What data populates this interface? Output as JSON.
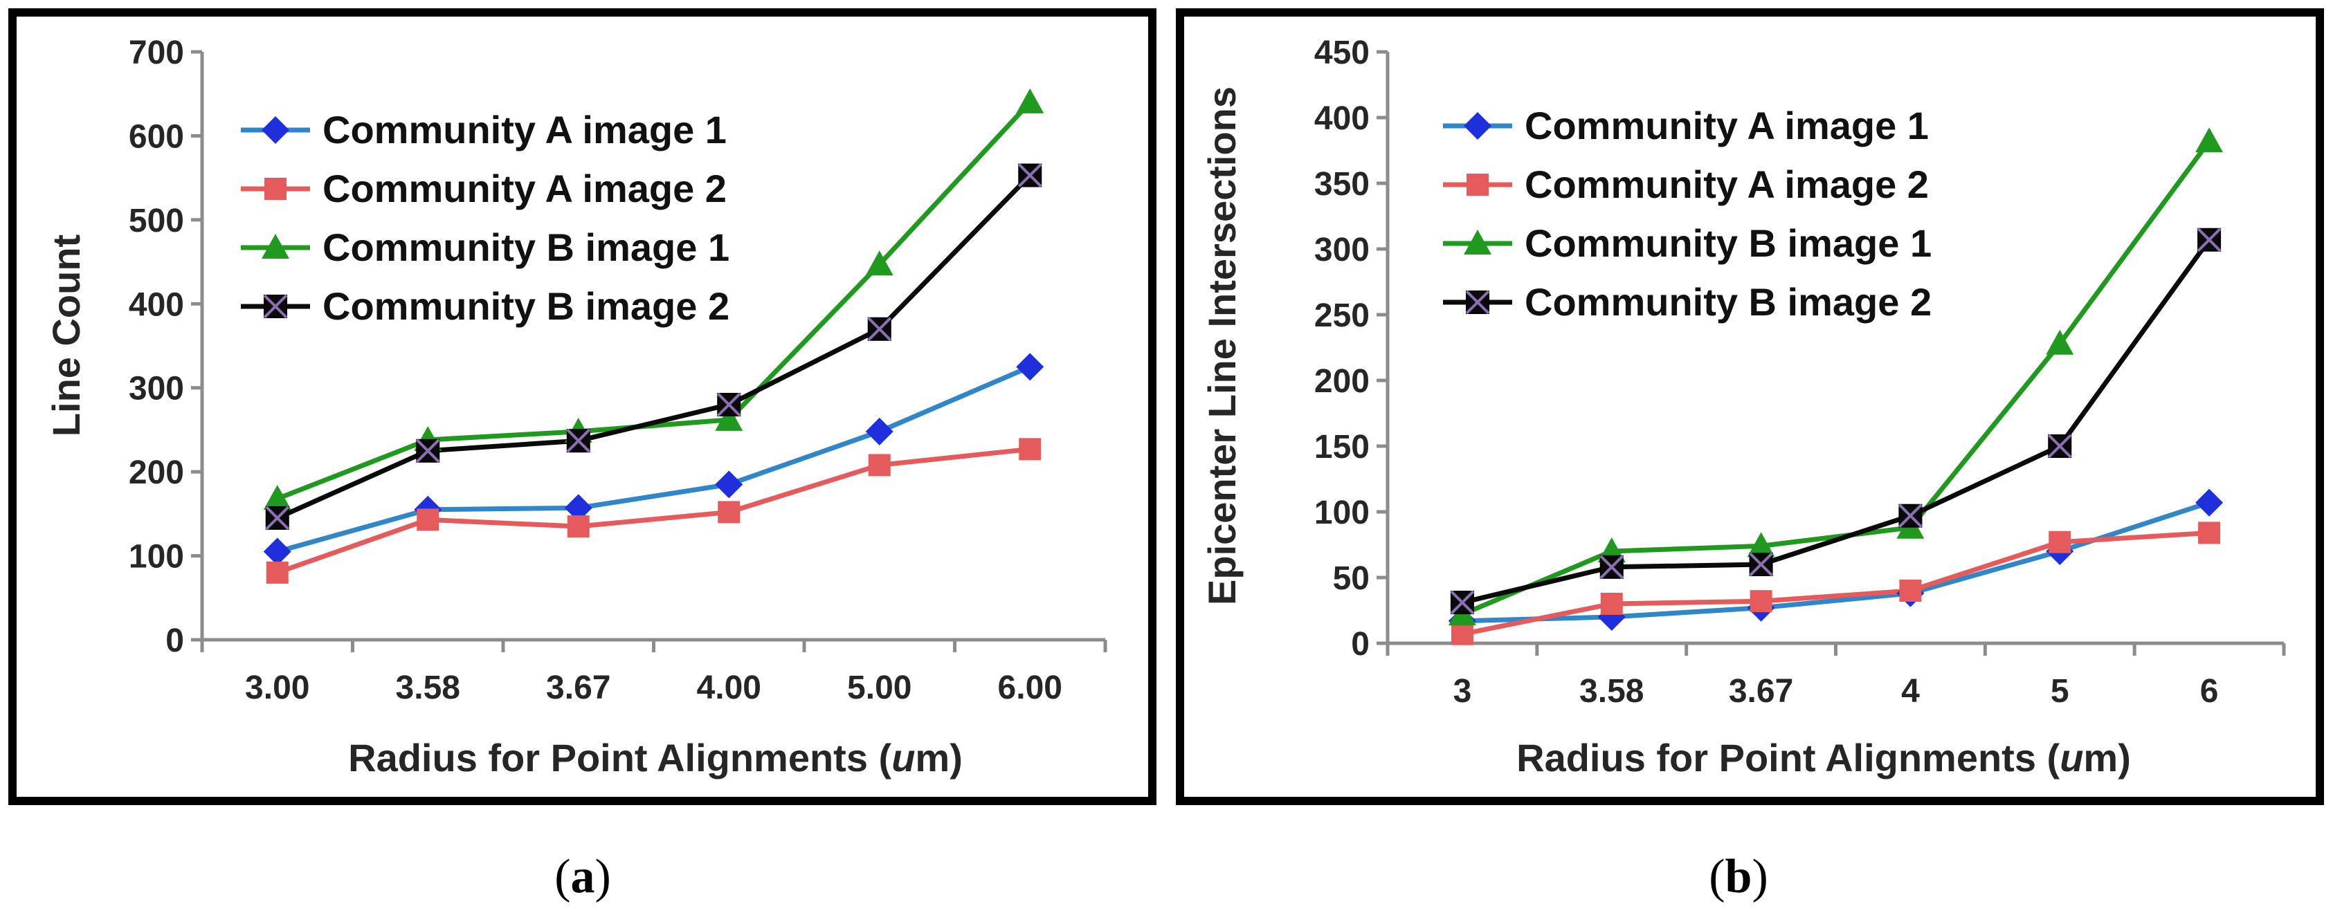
{
  "chart_data": [
    {
      "type": "line",
      "caption": "a",
      "title": "",
      "xlabel_prefix": "Radius for Point Alignments (",
      "xlabel_unit": "u",
      "xlabel_suffix": "m)",
      "ylabel": "Line Count",
      "categories": [
        "3.00",
        "3.58",
        "3.67",
        "4.00",
        "5.00",
        "6.00"
      ],
      "ylim": [
        0,
        700
      ],
      "yticks": [
        "0",
        "100",
        "200",
        "300",
        "400",
        "500",
        "600",
        "700"
      ],
      "grid": false,
      "legend_position": "top-left",
      "series": [
        {
          "name": "Community A image 1",
          "values": [
            105,
            155,
            157,
            185,
            248,
            325
          ]
        },
        {
          "name": "Community A image 2",
          "values": [
            80,
            143,
            135,
            152,
            208,
            227
          ]
        },
        {
          "name": "Community B image 1",
          "values": [
            168,
            238,
            248,
            262,
            447,
            640
          ]
        },
        {
          "name": "Community B image 2",
          "values": [
            145,
            225,
            237,
            280,
            370,
            553
          ]
        }
      ]
    },
    {
      "type": "line",
      "caption": "b",
      "title": "",
      "xlabel_prefix": "Radius for Point Alignments (",
      "xlabel_unit": "u",
      "xlabel_suffix": "m)",
      "ylabel": "Epicenter Line Intersections",
      "categories": [
        "3",
        "3.58",
        "3.67",
        "4",
        "5",
        "6"
      ],
      "ylim": [
        0,
        450
      ],
      "yticks": [
        "0",
        "50",
        "100",
        "150",
        "200",
        "250",
        "300",
        "350",
        "400",
        "450"
      ],
      "grid": false,
      "legend_position": "top-left",
      "series": [
        {
          "name": "Community A image 1",
          "values": [
            17,
            20,
            27,
            38,
            70,
            107
          ]
        },
        {
          "name": "Community A image 2",
          "values": [
            7,
            30,
            32,
            40,
            77,
            84
          ]
        },
        {
          "name": "Community B image 1",
          "values": [
            22,
            70,
            74,
            88,
            228,
            382
          ]
        },
        {
          "name": "Community B image 2",
          "values": [
            31,
            58,
            60,
            97,
            150,
            307
          ]
        }
      ]
    }
  ],
  "colors": {
    "community_a1": "#1f2fdc",
    "community_a2": "#e55a5a",
    "community_b1": "#1f9a1f",
    "community_b2": "#0a0a0a",
    "line_a1": "#2f86c8",
    "line_a2": "#e55a5a",
    "line_b1": "#1f9a1f",
    "line_b2": "#0a0a0a"
  },
  "markers": {
    "community_a1": "diamond",
    "community_a2": "square",
    "community_b1": "triangle",
    "community_b2": "square-x"
  }
}
